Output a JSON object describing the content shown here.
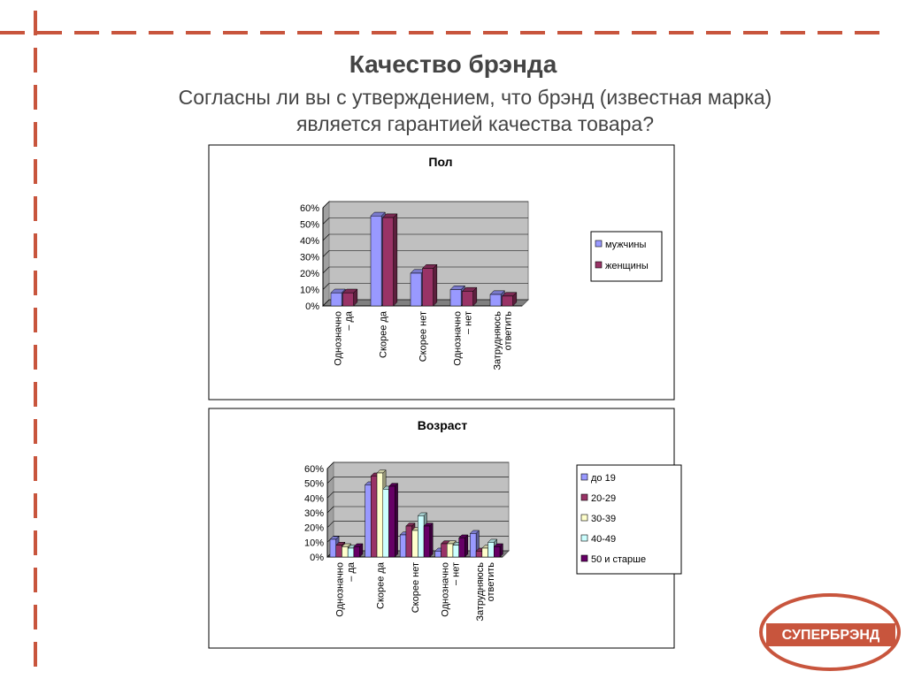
{
  "slide": {
    "title": "Качество брэнда",
    "subtitle": "Согласны ли вы с утверждением, что брэнд (известная марка)\nявляется гарантией качества товара?",
    "logo": "СУПЕРБРЭНД"
  },
  "chart_data": [
    {
      "type": "bar",
      "title": "Пол",
      "categories": [
        "Однозначно\n– да",
        "Скорее да",
        "Скорее нет",
        "Однозначно\n– нет",
        "Затрудняюсь\nответить"
      ],
      "series": [
        {
          "name": "мужчины",
          "color": "#9999ff",
          "values": [
            8,
            55,
            20,
            10,
            7
          ]
        },
        {
          "name": "женщины",
          "color": "#993366",
          "values": [
            8,
            54,
            23,
            9,
            6
          ]
        }
      ],
      "ylim": [
        0,
        60
      ],
      "yticks": [
        {
          "value": 0,
          "label": "0%"
        },
        {
          "value": 10,
          "label": "10%"
        },
        {
          "value": 20,
          "label": "20%"
        },
        {
          "value": 30,
          "label": "30%"
        },
        {
          "value": 40,
          "label": "40%"
        },
        {
          "value": 50,
          "label": "50%"
        },
        {
          "value": 60,
          "label": "60%"
        }
      ],
      "grid": true,
      "legend": "right"
    },
    {
      "type": "bar",
      "title": "Возраст",
      "categories": [
        "Однозначно\n– да",
        "Скорее да",
        "Скорее нет",
        "Однозначно\n– нет",
        "Затрудняюсь\nответить"
      ],
      "series": [
        {
          "name": "до 19",
          "color": "#9999ff",
          "values": [
            12,
            49,
            15,
            4,
            16
          ]
        },
        {
          "name": "20-29",
          "color": "#993366",
          "values": [
            8,
            55,
            21,
            9,
            4
          ]
        },
        {
          "name": "30-39",
          "color": "#ffffcc",
          "values": [
            7,
            57,
            18,
            9,
            6
          ]
        },
        {
          "name": "40-49",
          "color": "#ccffff",
          "values": [
            6,
            46,
            28,
            8,
            10
          ]
        },
        {
          "name": "50 и старше",
          "color": "#660066",
          "values": [
            7,
            48,
            21,
            13,
            7
          ]
        }
      ],
      "ylim": [
        0,
        60
      ],
      "yticks": [
        {
          "value": 0,
          "label": "0%"
        },
        {
          "value": 10,
          "label": "10%"
        },
        {
          "value": 20,
          "label": "20%"
        },
        {
          "value": 30,
          "label": "30%"
        },
        {
          "value": 40,
          "label": "40%"
        },
        {
          "value": 50,
          "label": "50%"
        },
        {
          "value": 60,
          "label": "60%"
        }
      ],
      "grid": true,
      "legend": "right"
    }
  ]
}
